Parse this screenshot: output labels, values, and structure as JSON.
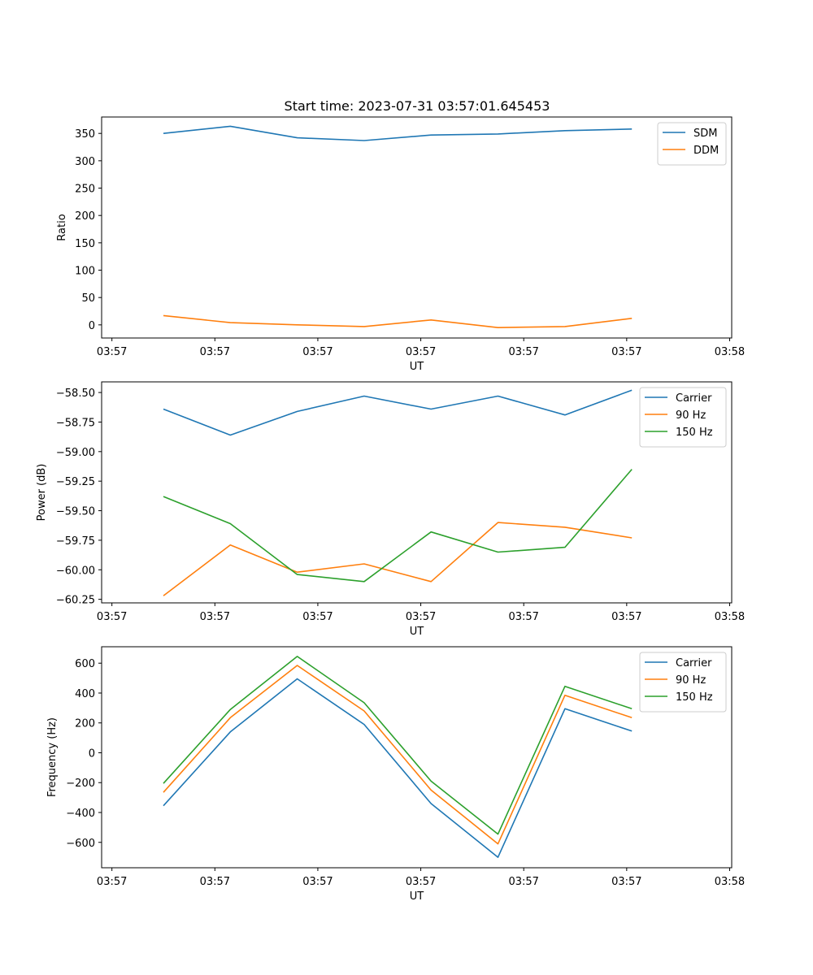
{
  "figure_title": "Start time: 2023-07-31 03:57:01.645453",
  "chart_data": [
    {
      "type": "line",
      "title": "Start time: 2023-07-31 03:57:01.645453",
      "xlabel": "UT",
      "ylabel": "Ratio",
      "x_ticks": [
        "03:57",
        "03:57",
        "03:57",
        "03:57",
        "03:57",
        "03:57",
        "03:58"
      ],
      "x_tick_positions": [
        0,
        1,
        2,
        3,
        4,
        5,
        6
      ],
      "xlim": [
        -0.1,
        6.02
      ],
      "x": [
        0.5,
        1.15,
        1.8,
        2.45,
        3.1,
        3.75,
        4.4,
        5.05
      ],
      "ylim": [
        -24,
        380
      ],
      "y_ticks": [
        0,
        50,
        100,
        150,
        200,
        250,
        300,
        350
      ],
      "legend_position": "upper-right",
      "series": [
        {
          "name": "SDM",
          "color": "#1f77b4",
          "values": [
            350,
            363,
            342,
            337,
            347,
            349,
            355,
            358
          ]
        },
        {
          "name": "DDM",
          "color": "#ff7f0e",
          "values": [
            17,
            4,
            0,
            -3,
            9,
            -5,
            -3,
            12
          ]
        }
      ]
    },
    {
      "type": "line",
      "title": "",
      "xlabel": "UT",
      "ylabel": "Power (dB)",
      "x_ticks": [
        "03:57",
        "03:57",
        "03:57",
        "03:57",
        "03:57",
        "03:57",
        "03:58"
      ],
      "x_tick_positions": [
        0,
        1,
        2,
        3,
        4,
        5,
        6
      ],
      "xlim": [
        -0.1,
        6.02
      ],
      "x": [
        0.5,
        1.15,
        1.8,
        2.45,
        3.1,
        3.75,
        4.4,
        5.05
      ],
      "ylim": [
        -60.28,
        -58.41
      ],
      "y_ticks": [
        -58.5,
        -58.75,
        -59.0,
        -59.25,
        -59.5,
        -59.75,
        -60.0,
        -60.25
      ],
      "y_tick_labels": [
        "−58.50",
        "−58.75",
        "−59.00",
        "−59.25",
        "−59.50",
        "−59.75",
        "−60.00",
        "−60.25"
      ],
      "legend_position": "upper-right",
      "series": [
        {
          "name": "Carrier",
          "color": "#1f77b4",
          "values": [
            -58.64,
            -58.86,
            -58.66,
            -58.53,
            -58.64,
            -58.53,
            -58.69,
            -58.48
          ]
        },
        {
          "name": "90 Hz",
          "color": "#ff7f0e",
          "values": [
            -60.22,
            -59.79,
            -60.02,
            -59.95,
            -60.1,
            -59.6,
            -59.64,
            -59.73
          ]
        },
        {
          "name": "150 Hz",
          "color": "#2ca02c",
          "values": [
            -59.38,
            -59.61,
            -60.04,
            -60.1,
            -59.68,
            -59.85,
            -59.81,
            -59.15
          ]
        }
      ]
    },
    {
      "type": "line",
      "title": "",
      "xlabel": "UT",
      "ylabel": "Frequency (Hz)",
      "x_ticks": [
        "03:57",
        "03:57",
        "03:57",
        "03:57",
        "03:57",
        "03:57",
        "03:58"
      ],
      "x_tick_positions": [
        0,
        1,
        2,
        3,
        4,
        5,
        6
      ],
      "xlim": [
        -0.1,
        6.02
      ],
      "x": [
        0.5,
        1.15,
        1.8,
        2.45,
        3.1,
        3.75,
        4.4,
        5.05
      ],
      "ylim": [
        -770,
        710
      ],
      "y_ticks": [
        600,
        400,
        200,
        0,
        -200,
        -400,
        -600
      ],
      "y_tick_labels": [
        "600",
        "400",
        "200",
        "0",
        "−200",
        "−400",
        "−600"
      ],
      "legend_position": "upper-right",
      "series": [
        {
          "name": "Carrier",
          "color": "#1f77b4",
          "values": [
            -355,
            140,
            495,
            190,
            -340,
            -700,
            295,
            145
          ]
        },
        {
          "name": "90 Hz",
          "color": "#ff7f0e",
          "values": [
            -265,
            235,
            585,
            280,
            -250,
            -610,
            385,
            235
          ]
        },
        {
          "name": "150 Hz",
          "color": "#2ca02c",
          "values": [
            -205,
            290,
            645,
            335,
            -190,
            -545,
            445,
            295
          ]
        }
      ]
    }
  ]
}
